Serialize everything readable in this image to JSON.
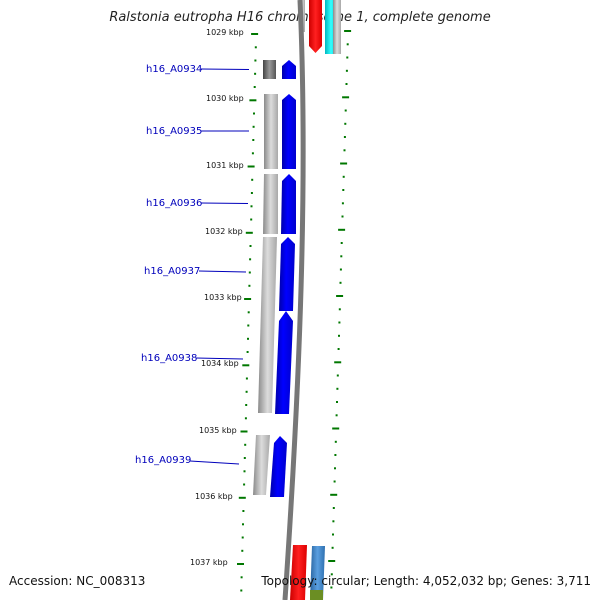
{
  "title": "Ralstonia eutropha H16 chromosome 1, complete genome",
  "footer": {
    "accession": "Accession: NC_008313",
    "topology": "Topology: circular; Length: 4,052,032 bp; Genes: 3,711"
  },
  "kbp_ticks": [
    "1029 kbp",
    "1030 kbp",
    "1031 kbp",
    "1032 kbp",
    "1033 kbp",
    "1034 kbp",
    "1035 kbp",
    "1036 kbp",
    "1037 kbp"
  ],
  "genes": [
    {
      "label": "h16_A0934"
    },
    {
      "label": "h16_A0935"
    },
    {
      "label": "h16_A0936"
    },
    {
      "label": "h16_A0937"
    },
    {
      "label": "h16_A0938"
    },
    {
      "label": "h16_A0939"
    }
  ],
  "colors": {
    "gene": "#0000ff",
    "cds_shadow": "#b0b0b0",
    "backbone": "#777777",
    "tick": "#007700",
    "label_line": "#0000bb",
    "red_feature": "#ff0000",
    "cyan_feature": "#00e5ee",
    "steelblue_feature": "#3a7fc0",
    "olive_feature": "#6b8e23"
  }
}
